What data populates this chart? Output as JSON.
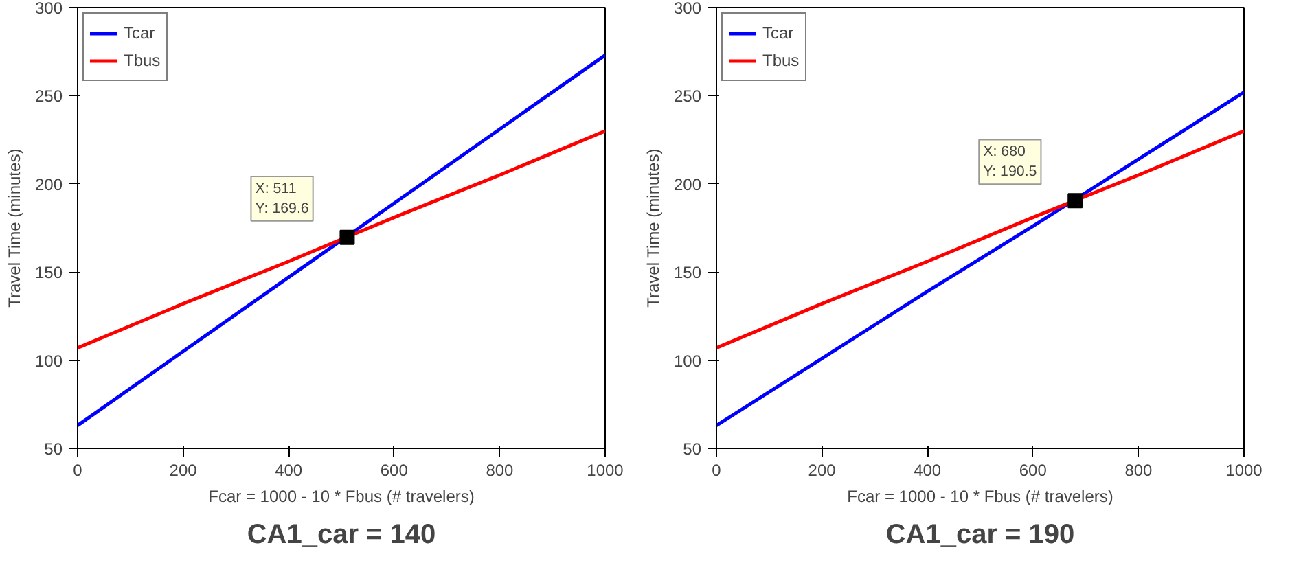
{
  "chart_data": [
    {
      "type": "line",
      "xlabel": "Fcar = 1000 - 10 * Fbus (# travelers)",
      "ylabel": "Travel Time (minutes)",
      "xlim": [
        0,
        1000
      ],
      "xticks": [
        0,
        200,
        400,
        600,
        800,
        1000
      ],
      "ylim": [
        50,
        300
      ],
      "yticks": [
        50,
        100,
        150,
        200,
        250,
        300
      ],
      "grid": false,
      "legend": "top left",
      "series": [
        {
          "name": "Tcar",
          "color": "#0000ff",
          "x": [
            0,
            200,
            400,
            600,
            800,
            1000
          ],
          "values": [
            63,
            105,
            147,
            189,
            231,
            273
          ]
        },
        {
          "name": "Tbus",
          "color": "#ff0000",
          "x": [
            0,
            200,
            400,
            600,
            800,
            1000
          ],
          "values": [
            107,
            132,
            156,
            181,
            205,
            230
          ]
        }
      ],
      "annotations": [
        {
          "text": "X: 511\nY: 169.6",
          "x": 511,
          "y": 169.6
        },
        "CA1_car = 140"
      ]
    },
    {
      "type": "line",
      "xlabel": "Fcar = 1000 - 10 * Fbus (# travelers)",
      "ylabel": "Travel Time (minutes)",
      "xlim": [
        0,
        1000
      ],
      "xticks": [
        0,
        200,
        400,
        600,
        800,
        1000
      ],
      "ylim": [
        50,
        300
      ],
      "yticks": [
        50,
        100,
        150,
        200,
        250,
        300
      ],
      "grid": false,
      "legend": "top left",
      "series": [
        {
          "name": "Tcar",
          "color": "#0000ff",
          "x": [
            0,
            200,
            400,
            600,
            800,
            1000
          ],
          "values": [
            63,
            101,
            139,
            176,
            214,
            252
          ]
        },
        {
          "name": "Tbus",
          "color": "#ff0000",
          "x": [
            0,
            200,
            400,
            600,
            800,
            1000
          ],
          "values": [
            107,
            132,
            156,
            181,
            205,
            230
          ]
        }
      ],
      "annotations": [
        {
          "text": "X: 680\nY: 190.5",
          "x": 680,
          "y": 190.5
        },
        "CA1_car = 190"
      ]
    }
  ]
}
